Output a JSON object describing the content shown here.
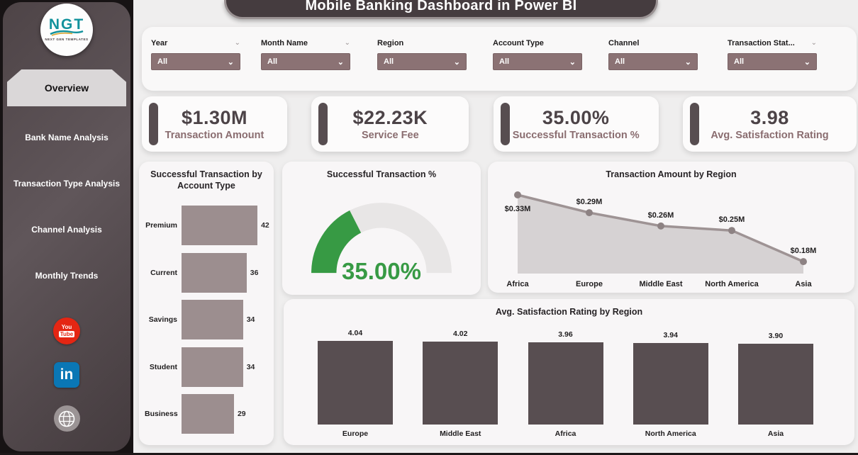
{
  "title": "Mobile Banking Dashboard in Power BI",
  "sidebar": {
    "logo": {
      "text": "NGT",
      "subtext": "NEXT GEN TEMPLATES"
    },
    "items": [
      {
        "label": "Overview",
        "active": true
      },
      {
        "label": "Bank Name Analysis",
        "active": false
      },
      {
        "label": "Transaction Type Analysis",
        "active": false
      },
      {
        "label": "Channel Analysis",
        "active": false
      },
      {
        "label": "Monthly Trends",
        "active": false
      }
    ],
    "social": [
      "youtube",
      "linkedin",
      "website"
    ]
  },
  "filters": [
    {
      "label": "Year",
      "value": "All",
      "label_chevron": true
    },
    {
      "label": "Month Name",
      "value": "All",
      "label_chevron": true
    },
    {
      "label": "Region",
      "value": "All",
      "label_chevron": false
    },
    {
      "label": "Account Type",
      "value": "All",
      "label_chevron": false
    },
    {
      "label": "Channel",
      "value": "All",
      "label_chevron": false
    },
    {
      "label": "Transaction Stat...",
      "value": "All",
      "label_chevron": true
    }
  ],
  "kpis": [
    {
      "value": "$1.30M",
      "label": "Transaction Amount"
    },
    {
      "value": "$22.23K",
      "label": "Service Fee"
    },
    {
      "value": "35.00%",
      "label": "Successful Transaction %"
    },
    {
      "value": "3.98",
      "label": "Avg. Satisfaction Rating"
    }
  ],
  "chart_data": [
    {
      "type": "bar",
      "orientation": "horizontal",
      "title": "Successful Transaction by Account Type",
      "categories": [
        "Premium",
        "Current",
        "Savings",
        "Student",
        "Business"
      ],
      "values": [
        42,
        36,
        34,
        34,
        29
      ],
      "xlim": [
        0,
        45
      ]
    },
    {
      "type": "gauge",
      "title": "Successful Transaction %",
      "value": 35.0,
      "display": "35.00%",
      "min": 0,
      "max": 100
    },
    {
      "type": "area",
      "title": "Transaction Amount by Region",
      "categories": [
        "Africa",
        "Europe",
        "Middle East",
        "North America",
        "Asia"
      ],
      "values": [
        0.33,
        0.29,
        0.26,
        0.25,
        0.18
      ],
      "labels": [
        "$0.33M",
        "$0.29M",
        "$0.26M",
        "$0.25M",
        "$0.18M"
      ]
    },
    {
      "type": "bar",
      "orientation": "vertical",
      "title": "Avg. Satisfaction Rating by Region",
      "categories": [
        "Europe",
        "Middle East",
        "Africa",
        "North America",
        "Asia"
      ],
      "values": [
        4.04,
        4.02,
        3.96,
        3.94,
        3.9
      ],
      "labels": [
        "4.04",
        "4.02",
        "3.96",
        "3.94",
        "3.90"
      ]
    }
  ],
  "colors": {
    "sidebar": "#554b4e",
    "accent_dark": "#574d50",
    "dropdown": "#8b7274",
    "bar_light": "#9c8e8f",
    "bar_dark": "#584e51",
    "gauge_green": "#379a44",
    "gauge_track": "#e8e6e6",
    "area_fill": "#d6d2d3",
    "line": "#9e9394",
    "marker": "#8d8283"
  }
}
